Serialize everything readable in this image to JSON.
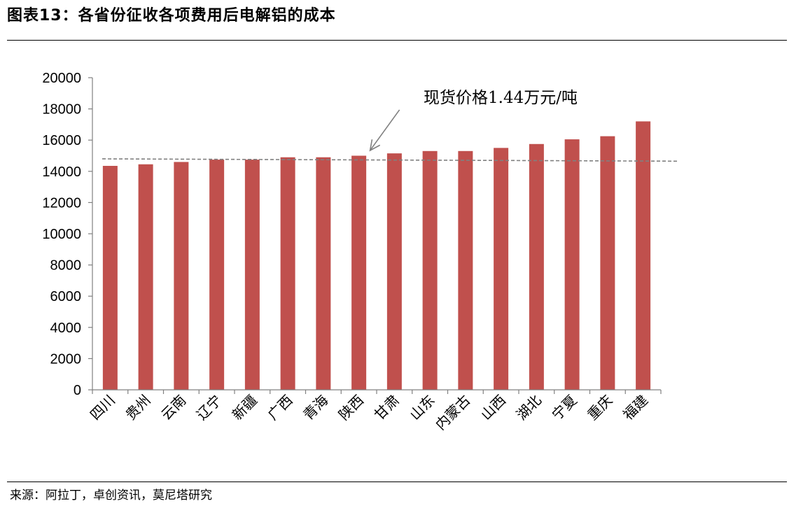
{
  "header": {
    "title": "图表13：各省份征收各项费用后电解铝的成本"
  },
  "footer": {
    "source": "来源：阿拉丁，卓创资讯，莫尼塔研究"
  },
  "chart_data": {
    "type": "bar",
    "categories": [
      "四川",
      "贵州",
      "云南",
      "辽宁",
      "新疆",
      "广西",
      "青海",
      "陕西",
      "甘肃",
      "山东",
      "内蒙古",
      "山西",
      "湖北",
      "宁夏",
      "重庆",
      "福建"
    ],
    "values": [
      14350,
      14450,
      14600,
      14750,
      14750,
      14900,
      14900,
      15000,
      15150,
      15300,
      15300,
      15500,
      15750,
      16050,
      16250,
      17200
    ],
    "ylim": [
      0,
      20000
    ],
    "yticks": [
      0,
      2000,
      4000,
      6000,
      8000,
      10000,
      12000,
      14000,
      16000,
      18000,
      20000
    ],
    "title": "",
    "xlabel": "",
    "ylabel": "",
    "bar_color": "#c0504d",
    "grid": false,
    "legend": "none",
    "reference_line": {
      "start_value": 14800,
      "end_value": 14650,
      "style": "dashed",
      "color": "#808080"
    },
    "annotation": {
      "text": "现货价格1.44万元/吨",
      "arrow_target": "陕西"
    }
  }
}
